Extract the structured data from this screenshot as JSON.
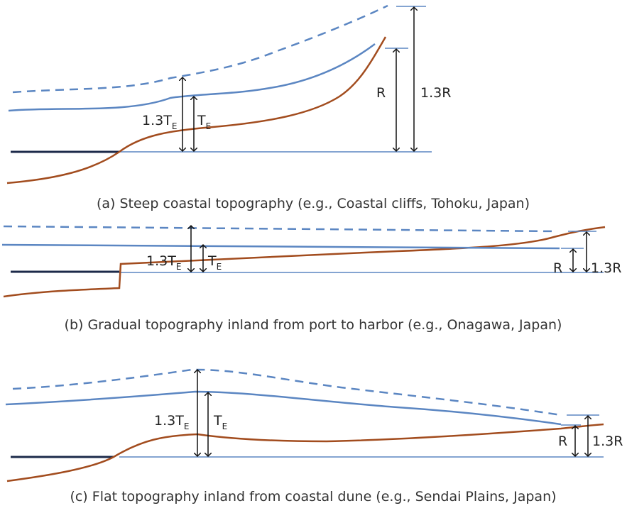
{
  "panels": [
    {
      "id": "a",
      "caption": "(a) Steep coastal topography (e.g., Coastal cliffs, Tohoku, Japan)",
      "label_13te_main": "1.3T",
      "label_13te_sub": "E",
      "label_te_main": "T",
      "label_te_sub": "E",
      "label_r": "R",
      "label_13r": "1.3R"
    },
    {
      "id": "b",
      "caption": "(b) Gradual topography inland from port to harbor (e.g., Onagawa, Japan)",
      "label_13te_main": "1.3T",
      "label_13te_sub": "E",
      "label_te_main": "T",
      "label_te_sub": "E",
      "label_r": "R",
      "label_13r": "1.3R"
    },
    {
      "id": "c",
      "caption": "(c) Flat topography inland from coastal dune (e.g., Sendai Plains, Japan)",
      "label_13te_main": "1.3T",
      "label_13te_sub": "E",
      "label_te_main": "T",
      "label_te_sub": "E",
      "label_r": "R",
      "label_13r": "1.3R"
    }
  ],
  "colors": {
    "water": "#5b86c2",
    "ground": "#a24c1e",
    "sea": "#1c2a4a",
    "arrow": "#111111"
  }
}
